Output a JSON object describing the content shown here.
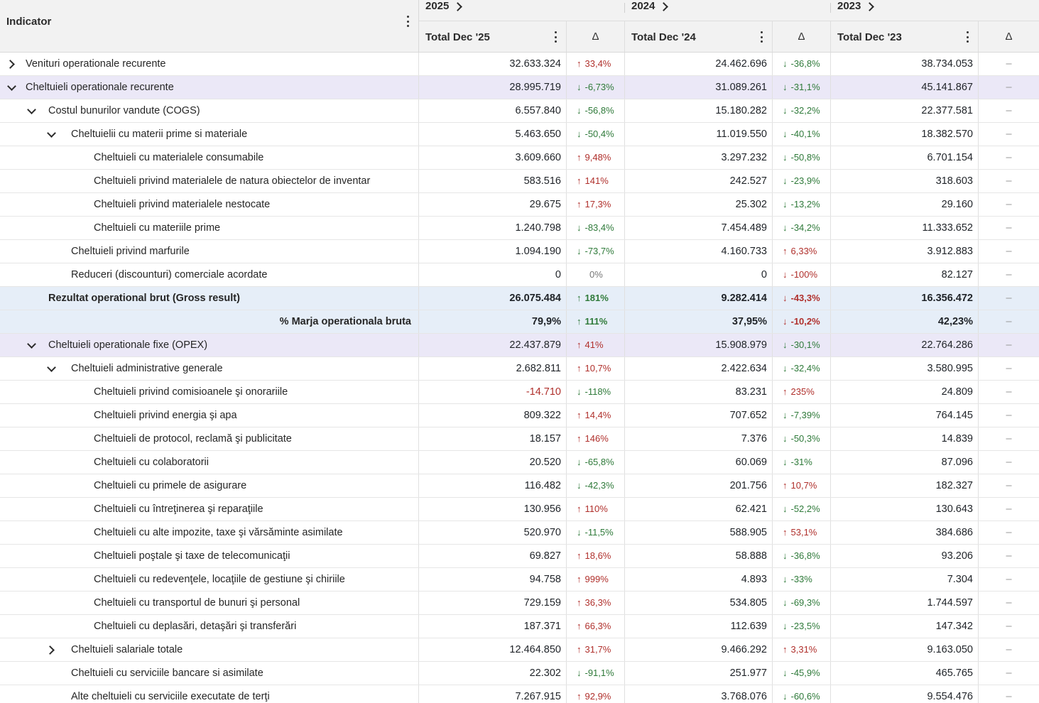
{
  "header": {
    "indicator_label": "Indicator",
    "groups": [
      {
        "year": "2025",
        "total_label": "Total Dec '25",
        "delta_label": "Δ"
      },
      {
        "year": "2024",
        "total_label": "Total Dec '24",
        "delta_label": "Δ"
      },
      {
        "year": "2023",
        "total_label": "Total Dec '23",
        "delta_label": "Δ"
      }
    ]
  },
  "icons": {
    "up": "↑",
    "down": "↓"
  },
  "rows": [
    {
      "label": "Venituri operationale recurente",
      "level": 0,
      "toggle": "right",
      "bg": "w",
      "v1": "32.633.324",
      "d1": "33,4%",
      "d1dir": "up",
      "v2": "24.462.696",
      "d2": "-36,8%",
      "d2dir": "down",
      "v3": "38.734.053",
      "d3": "–"
    },
    {
      "label": "Cheltuieli operationale recurente",
      "level": 0,
      "toggle": "down",
      "bg": "p",
      "v1": "28.995.719",
      "d1": "-6,73%",
      "d1dir": "down",
      "v2": "31.089.261",
      "d2": "-31,1%",
      "d2dir": "down",
      "v3": "45.141.867",
      "d3": "–"
    },
    {
      "label": "Costul bunurilor vandute (COGS)",
      "level": 1,
      "toggle": "down",
      "bg": "w",
      "v1": "6.557.840",
      "d1": "-56,8%",
      "d1dir": "down",
      "v2": "15.180.282",
      "d2": "-32,2%",
      "d2dir": "down",
      "v3": "22.377.581",
      "d3": "–"
    },
    {
      "label": "Cheltuielii cu materii prime si materiale",
      "level": 2,
      "toggle": "down",
      "bg": "w",
      "v1": "5.463.650",
      "d1": "-50,4%",
      "d1dir": "down",
      "v2": "11.019.550",
      "d2": "-40,1%",
      "d2dir": "down",
      "v3": "18.382.570",
      "d3": "–"
    },
    {
      "label": "Cheltuieli cu materialele consumabile",
      "level": 3,
      "toggle": "",
      "bg": "w",
      "v1": "3.609.660",
      "d1": "9,48%",
      "d1dir": "up",
      "v2": "3.297.232",
      "d2": "-50,8%",
      "d2dir": "down",
      "v3": "6.701.154",
      "d3": "–"
    },
    {
      "label": "Cheltuieli privind materialele de natura obiectelor de inventar",
      "level": 3,
      "toggle": "",
      "bg": "w",
      "v1": "583.516",
      "d1": "141%",
      "d1dir": "up",
      "v2": "242.527",
      "d2": "-23,9%",
      "d2dir": "down",
      "v3": "318.603",
      "d3": "–"
    },
    {
      "label": "Cheltuieli privind materialele nestocate",
      "level": 3,
      "toggle": "",
      "bg": "w",
      "v1": "29.675",
      "d1": "17,3%",
      "d1dir": "up",
      "v2": "25.302",
      "d2": "-13,2%",
      "d2dir": "down",
      "v3": "29.160",
      "d3": "–"
    },
    {
      "label": "Cheltuieli cu materiile prime",
      "level": 3,
      "toggle": "",
      "bg": "w",
      "v1": "1.240.798",
      "d1": "-83,4%",
      "d1dir": "down",
      "v2": "7.454.489",
      "d2": "-34,2%",
      "d2dir": "down",
      "v3": "11.333.652",
      "d3": "–"
    },
    {
      "label": "Cheltuieli privind marfurile",
      "level": 2,
      "toggle": "",
      "bg": "w",
      "v1": "1.094.190",
      "d1": "-73,7%",
      "d1dir": "down",
      "v2": "4.160.733",
      "d2": "6,33%",
      "d2dir": "up",
      "v3": "3.912.883",
      "d3": "–"
    },
    {
      "label": "Reduceri (discounturi) comerciale acordate",
      "level": 2,
      "toggle": "",
      "bg": "w",
      "v1": "0",
      "d1": "0%",
      "d1dir": "none",
      "v2": "0",
      "d2": "-100%",
      "d2dir": "downred",
      "v3": "82.127",
      "d3": "–"
    },
    {
      "label": "Rezultat operational brut (Gross result)",
      "level": 1,
      "toggle": "",
      "bg": "b",
      "bold": true,
      "v1": "26.075.484",
      "d1": "181%",
      "d1dir": "upgreen",
      "v2": "9.282.414",
      "d2": "-43,3%",
      "d2dir": "downred",
      "v3": "16.356.472",
      "d3": "–"
    },
    {
      "label": "% Marja operationala bruta",
      "level": 1,
      "toggle": "",
      "bg": "b",
      "bold": true,
      "right": true,
      "v1": "79,9%",
      "d1": "111%",
      "d1dir": "upgreen",
      "v2": "37,95%",
      "d2": "-10,2%",
      "d2dir": "downred",
      "v3": "42,23%",
      "d3": "–"
    },
    {
      "label": "Cheltuieli operationale fixe (OPEX)",
      "level": 1,
      "toggle": "down",
      "bg": "p",
      "v1": "22.437.879",
      "d1": "41%",
      "d1dir": "up",
      "v2": "15.908.979",
      "d2": "-30,1%",
      "d2dir": "down",
      "v3": "22.764.286",
      "d3": "–"
    },
    {
      "label": "Cheltuieli administrative generale",
      "level": 2,
      "toggle": "down",
      "bg": "w",
      "v1": "2.682.811",
      "d1": "10,7%",
      "d1dir": "up",
      "v2": "2.422.634",
      "d2": "-32,4%",
      "d2dir": "down",
      "v3": "3.580.995",
      "d3": "–"
    },
    {
      "label": "Cheltuieli privind comisioanele şi onorariile",
      "level": 3,
      "toggle": "",
      "bg": "w",
      "v1": "-14.710",
      "neg": true,
      "d1": "-118%",
      "d1dir": "down",
      "v2": "83.231",
      "d2": "235%",
      "d2dir": "up",
      "v3": "24.809",
      "d3": "–"
    },
    {
      "label": "Cheltuieli privind energia şi apa",
      "level": 3,
      "toggle": "",
      "bg": "w",
      "v1": "809.322",
      "d1": "14,4%",
      "d1dir": "up",
      "v2": "707.652",
      "d2": "-7,39%",
      "d2dir": "down",
      "v3": "764.145",
      "d3": "–"
    },
    {
      "label": "Cheltuieli de protocol, reclamă şi publicitate",
      "level": 3,
      "toggle": "",
      "bg": "w",
      "v1": "18.157",
      "d1": "146%",
      "d1dir": "up",
      "v2": "7.376",
      "d2": "-50,3%",
      "d2dir": "down",
      "v3": "14.839",
      "d3": "–"
    },
    {
      "label": "Cheltuieli cu colaboratorii",
      "level": 3,
      "toggle": "",
      "bg": "w",
      "v1": "20.520",
      "d1": "-65,8%",
      "d1dir": "down",
      "v2": "60.069",
      "d2": "-31%",
      "d2dir": "down",
      "v3": "87.096",
      "d3": "–"
    },
    {
      "label": "Cheltuieli cu primele de asigurare",
      "level": 3,
      "toggle": "",
      "bg": "w",
      "v1": "116.482",
      "d1": "-42,3%",
      "d1dir": "down",
      "v2": "201.756",
      "d2": "10,7%",
      "d2dir": "up",
      "v3": "182.327",
      "d3": "–"
    },
    {
      "label": "Cheltuieli cu întreţinerea şi reparaţiile",
      "level": 3,
      "toggle": "",
      "bg": "w",
      "v1": "130.956",
      "d1": "110%",
      "d1dir": "up",
      "v2": "62.421",
      "d2": "-52,2%",
      "d2dir": "down",
      "v3": "130.643",
      "d3": "–"
    },
    {
      "label": "Cheltuieli cu alte impozite, taxe şi vărsăminte asimilate",
      "level": 3,
      "toggle": "",
      "bg": "w",
      "v1": "520.970",
      "d1": "-11,5%",
      "d1dir": "down",
      "v2": "588.905",
      "d2": "53,1%",
      "d2dir": "up",
      "v3": "384.686",
      "d3": "–"
    },
    {
      "label": "Cheltuieli poştale şi taxe de telecomunicaţii",
      "level": 3,
      "toggle": "",
      "bg": "w",
      "v1": "69.827",
      "d1": "18,6%",
      "d1dir": "up",
      "v2": "58.888",
      "d2": "-36,8%",
      "d2dir": "down",
      "v3": "93.206",
      "d3": "–"
    },
    {
      "label": "Cheltuieli cu redevenţele, locaţiile de gestiune şi chiriile",
      "level": 3,
      "toggle": "",
      "bg": "w",
      "v1": "94.758",
      "d1": "999%",
      "d1dir": "up",
      "v2": "4.893",
      "d2": "-33%",
      "d2dir": "down",
      "v3": "7.304",
      "d3": "–"
    },
    {
      "label": "Cheltuieli cu transportul de bunuri şi personal",
      "level": 3,
      "toggle": "",
      "bg": "w",
      "v1": "729.159",
      "d1": "36,3%",
      "d1dir": "up",
      "v2": "534.805",
      "d2": "-69,3%",
      "d2dir": "down",
      "v3": "1.744.597",
      "d3": "–"
    },
    {
      "label": "Cheltuieli cu deplasări, detaşări şi transferări",
      "level": 3,
      "toggle": "",
      "bg": "w",
      "v1": "187.371",
      "d1": "66,3%",
      "d1dir": "up",
      "v2": "112.639",
      "d2": "-23,5%",
      "d2dir": "down",
      "v3": "147.342",
      "d3": "–"
    },
    {
      "label": "Cheltuieli salariale totale",
      "level": 2,
      "toggle": "right",
      "bg": "w",
      "v1": "12.464.850",
      "d1": "31,7%",
      "d1dir": "up",
      "v2": "9.466.292",
      "d2": "3,31%",
      "d2dir": "up",
      "v3": "9.163.050",
      "d3": "–"
    },
    {
      "label": "Cheltuieli cu serviciile bancare si asimilate",
      "level": 2,
      "toggle": "",
      "bg": "w",
      "v1": "22.302",
      "d1": "-91,1%",
      "d1dir": "down",
      "v2": "251.977",
      "d2": "-45,9%",
      "d2dir": "down",
      "v3": "465.765",
      "d3": "–"
    },
    {
      "label": "Alte cheltuieli cu serviciile executate de terţi",
      "level": 2,
      "toggle": "",
      "bg": "w",
      "v1": "7.267.915",
      "d1": "92,9%",
      "d1dir": "up",
      "v2": "3.768.076",
      "d2": "-60,6%",
      "d2dir": "down",
      "v3": "9.554.476",
      "d3": "–"
    }
  ]
}
